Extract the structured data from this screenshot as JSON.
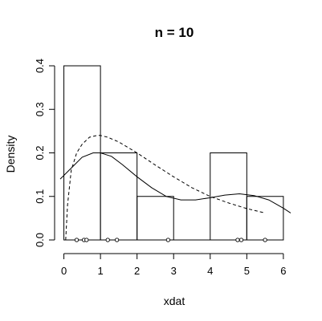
{
  "chart_data": {
    "type": "histogram",
    "title": "n = 10",
    "xlabel": "xdat",
    "ylabel": "Density",
    "xlim": [
      -0.1,
      6.2
    ],
    "ylim": [
      0,
      0.42
    ],
    "x_ticks": [
      "0",
      "1",
      "2",
      "3",
      "4",
      "5",
      "6"
    ],
    "y_ticks": [
      "0.0",
      "0.1",
      "0.2",
      "0.3",
      "0.4"
    ],
    "bins": [
      {
        "x0": 0,
        "x1": 1,
        "density": 0.4
      },
      {
        "x0": 1,
        "x1": 2,
        "density": 0.2
      },
      {
        "x0": 2,
        "x1": 3,
        "density": 0.1
      },
      {
        "x0": 3,
        "x1": 4,
        "density": 0.0
      },
      {
        "x0": 4,
        "x1": 5,
        "density": 0.2
      },
      {
        "x0": 5,
        "x1": 6,
        "density": 0.1
      }
    ],
    "rug": [
      0.35,
      0.55,
      0.62,
      1.2,
      1.45,
      2.85,
      4.75,
      4.85,
      5.5
    ],
    "curves": [
      {
        "style": "solid",
        "x": [
          -0.1,
          0.2,
          0.5,
          0.8,
          1.0,
          1.3,
          1.6,
          2.0,
          2.4,
          2.8,
          3.2,
          3.6,
          4.0,
          4.4,
          4.8,
          5.2,
          5.6,
          6.0,
          6.2
        ],
        "y": [
          0.14,
          0.165,
          0.19,
          0.2,
          0.2,
          0.192,
          0.173,
          0.145,
          0.12,
          0.1,
          0.092,
          0.092,
          0.097,
          0.103,
          0.106,
          0.102,
          0.092,
          0.073,
          0.062
        ]
      },
      {
        "style": "dashed",
        "x": [
          0.05,
          0.1,
          0.2,
          0.35,
          0.5,
          0.7,
          0.9,
          1.0,
          1.2,
          1.5,
          2.0,
          2.5,
          3.0,
          3.5,
          4.0,
          4.5,
          5.0,
          5.5
        ],
        "y": [
          0.0,
          0.08,
          0.16,
          0.2,
          0.22,
          0.236,
          0.24,
          0.24,
          0.236,
          0.225,
          0.2,
          0.172,
          0.145,
          0.12,
          0.1,
          0.085,
          0.072,
          0.062
        ]
      }
    ]
  }
}
